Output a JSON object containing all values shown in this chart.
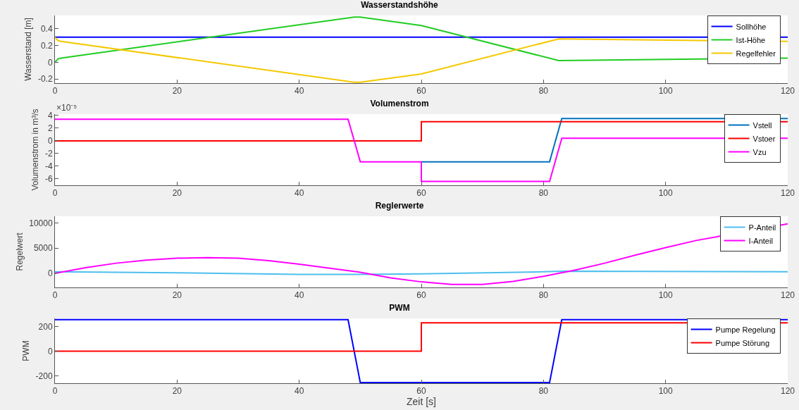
{
  "chart_data": [
    {
      "type": "line",
      "title": "Wasserstandshöhe",
      "ylabel": "Wasserstand [m]",
      "xlim": [
        0,
        120
      ],
      "xticks": [
        0,
        20,
        40,
        60,
        80,
        100,
        120
      ],
      "ylim": [
        -0.25,
        0.56
      ],
      "yticks": [
        -0.2,
        0,
        0.2,
        0.4
      ],
      "legend": "top right",
      "grid": false,
      "series": [
        {
          "name": "Sollhöhe",
          "color": "#0000ff",
          "x": [
            0,
            120
          ],
          "values": [
            0.3,
            0.3
          ]
        },
        {
          "name": "Ist-Höhe",
          "color": "#22cc22",
          "x": [
            0,
            0.5,
            1,
            49,
            50,
            60,
            82.5,
            120
          ],
          "values": [
            0,
            0.04,
            0.05,
            0.54,
            0.54,
            0.44,
            0.02,
            0.05
          ]
        },
        {
          "name": "Regelfehler",
          "color": "#f5c800",
          "x": [
            0,
            0.5,
            1,
            49,
            50,
            60,
            82.5,
            120
          ],
          "values": [
            0.3,
            0.26,
            0.25,
            -0.24,
            -0.24,
            -0.14,
            0.28,
            0.25
          ]
        }
      ]
    },
    {
      "type": "line",
      "title": "Volumenstrom",
      "ylabel": "Volumenstrom in m³/s",
      "annotations": [
        "×10⁻⁵"
      ],
      "xlim": [
        0,
        120
      ],
      "xticks": [
        0,
        20,
        40,
        60,
        80,
        100,
        120
      ],
      "ylim": [
        -7,
        4.2
      ],
      "yticks": [
        -6,
        -4,
        -2,
        0,
        2,
        4
      ],
      "legend": "top right",
      "grid": false,
      "series": [
        {
          "name": "Vstell",
          "color": "#0072bd",
          "x": [
            60,
            81,
            83,
            120
          ],
          "values": [
            -3.3,
            -3.3,
            3.5,
            3.5
          ]
        },
        {
          "name": "Vstoer",
          "color": "#ff0000",
          "x": [
            0,
            60,
            60,
            120
          ],
          "values": [
            0,
            0,
            3.0,
            3.0
          ]
        },
        {
          "name": "Vzu",
          "color": "#ff00ff",
          "x": [
            0,
            48,
            50,
            60,
            60,
            81,
            83,
            120
          ],
          "values": [
            3.4,
            3.4,
            -3.3,
            -3.3,
            -6.4,
            -6.4,
            0.4,
            0.4
          ]
        }
      ]
    },
    {
      "type": "line",
      "title": "Reglerwerte",
      "ylabel": "Regelwert",
      "xlim": [
        0,
        120
      ],
      "xticks": [
        0,
        20,
        40,
        60,
        80,
        100,
        120
      ],
      "ylim": [
        -2800,
        11300
      ],
      "yticks": [
        0,
        5000,
        10000
      ],
      "legend": "top right",
      "grid": false,
      "series": [
        {
          "name": "P-Anteil",
          "color": "#4dbeee",
          "x": [
            0,
            20,
            40,
            50,
            60,
            80,
            83,
            120
          ],
          "values": [
            300,
            100,
            -200,
            -200,
            -100,
            300,
            400,
            300
          ]
        },
        {
          "name": "I-Anteil",
          "color": "#ff00ff",
          "x": [
            0,
            5,
            10,
            15,
            20,
            25,
            30,
            35,
            40,
            45,
            50,
            55,
            60,
            65,
            70,
            75,
            80,
            85,
            90,
            95,
            100,
            105,
            120
          ],
          "values": [
            0,
            1100,
            2000,
            2600,
            3000,
            3100,
            3000,
            2500,
            1800,
            1000,
            200,
            -900,
            -1700,
            -2200,
            -2200,
            -1600,
            -600,
            600,
            2000,
            3600,
            5100,
            6500,
            9800
          ]
        }
      ]
    },
    {
      "type": "line",
      "title": "PWM",
      "xlabel": "Zeit [s]",
      "ylabel": "PWM",
      "xlim": [
        0,
        120
      ],
      "xticks": [
        0,
        20,
        40,
        60,
        80,
        100,
        120
      ],
      "ylim": [
        -260,
        265
      ],
      "yticks": [
        -200,
        0,
        200
      ],
      "legend": "top right",
      "grid": false,
      "series": [
        {
          "name": "Pumpe Regelung",
          "color": "#0000ff",
          "x": [
            0,
            48,
            50,
            81,
            83,
            120
          ],
          "values": [
            255,
            255,
            -255,
            -255,
            255,
            255
          ]
        },
        {
          "name": "Pumpe Störung",
          "color": "#ff0000",
          "x": [
            0,
            60,
            60,
            120
          ],
          "values": [
            0,
            0,
            230,
            230
          ]
        }
      ]
    }
  ]
}
